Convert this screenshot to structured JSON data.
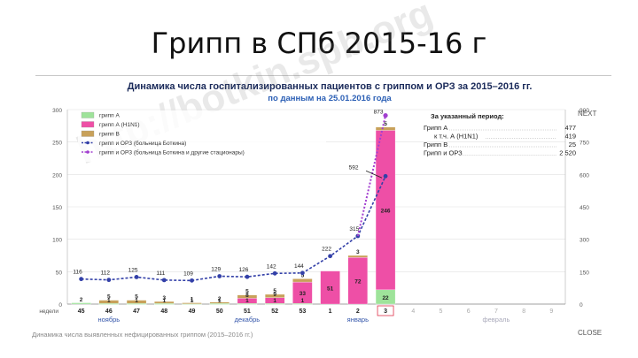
{
  "slide": {
    "title": "Грипп в СПб 2015-16 г"
  },
  "watermark": "http://botkin.spb.org",
  "footnote": "Динамика числа выявленных нефицированных гриппом (2015–2016 гг.)",
  "buttons": {
    "next": "NEXT",
    "close": "CLOSE"
  },
  "colors": {
    "grippA": "#9ee39a",
    "h1n1": "#ee4fa6",
    "grippB": "#c8a15a",
    "line1": "#3340a8",
    "line2": "#a23fd0"
  },
  "period": {
    "title": "За указанный период:",
    "items": [
      {
        "label": "Грипп А",
        "value": "477"
      },
      {
        "label": "к т.ч. А (H1N1)",
        "value": "419"
      },
      {
        "label": "Грипп В",
        "value": "25"
      },
      {
        "label": "Грипп и ОРЗ",
        "value": "2 520"
      }
    ]
  },
  "chart_data": {
    "type": "bar",
    "title": "Динамика числа госпитализированных пациентов с гриппом и ОРЗ за 2015–2016 гг.",
    "subtitle": "по данным на 25.01.2016 года",
    "xlabel": "недели",
    "categories": [
      "45",
      "46",
      "47",
      "48",
      "49",
      "50",
      "51",
      "52",
      "53",
      "1",
      "2",
      "3",
      "4",
      "5",
      "6",
      "7",
      "8",
      "9"
    ],
    "months": [
      "ноябрь",
      "декабрь",
      "январь",
      "февраль"
    ],
    "ylim_left": [
      0,
      300
    ],
    "yticks_left": [
      0,
      50,
      100,
      150,
      200,
      250,
      300
    ],
    "ylim_right": [
      0,
      900
    ],
    "yticks_right": [
      0,
      150,
      300,
      450,
      600,
      750,
      900
    ],
    "legend": [
      "грипп А",
      "грипп А (H1N1)",
      "грипп В",
      "грипп и ОРЗ (больница Боткина)",
      "грипп и ОРЗ (больница Боткина и другие стационары)"
    ],
    "series": [
      {
        "name": "грипп А",
        "values": [
          2,
          1,
          1,
          1,
          1,
          1,
          1,
          1,
          1,
          0,
          0,
          22,
          0,
          0,
          0,
          0,
          0,
          0
        ],
        "labels": [
          "2",
          "1",
          "1",
          "1",
          "1",
          "1",
          "1",
          "1",
          "1",
          "",
          "",
          "22",
          "",
          "",
          "",
          "",
          "",
          ""
        ]
      },
      {
        "name": "грипп А (H1N1)",
        "values": [
          0,
          0,
          0,
          0,
          0,
          0,
          8,
          9,
          33,
          51,
          72,
          246,
          0,
          0,
          0,
          0,
          0,
          0
        ],
        "labels": [
          "",
          "",
          "",
          "",
          "",
          "",
          "8",
          "9",
          "33",
          "51",
          "72",
          "246",
          "",
          "",
          "",
          "",
          "",
          ""
        ]
      },
      {
        "name": "грипп В",
        "values": [
          0,
          5,
          5,
          3,
          1,
          2,
          5,
          5,
          5,
          0,
          3,
          5,
          0,
          0,
          0,
          0,
          0,
          0
        ],
        "labels": [
          "",
          "5",
          "5",
          "3",
          "1",
          "2",
          "5",
          "5",
          "5",
          "",
          "3",
          "5",
          "",
          "",
          "",
          "",
          "",
          ""
        ]
      },
      {
        "name": "грипп и ОРЗ (больница Боткина)",
        "axis": "right",
        "values": [
          116,
          112,
          125,
          111,
          109,
          129,
          126,
          142,
          144,
          222,
          315,
          592,
          null,
          null,
          null,
          null,
          null,
          null
        ]
      },
      {
        "name": "грипп и ОРЗ (больница Боткина и другие стационары)",
        "axis": "right",
        "values": [
          null,
          null,
          null,
          null,
          null,
          null,
          null,
          null,
          null,
          null,
          null,
          873,
          null,
          null,
          null,
          null,
          null,
          null
        ]
      }
    ],
    "line_labels": [
      "116",
      "112",
      "125",
      "111",
      "109",
      "129",
      "126",
      "142",
      "144",
      "222",
      "315",
      "592"
    ],
    "peak_label": "873",
    "highlight_category": "3"
  }
}
